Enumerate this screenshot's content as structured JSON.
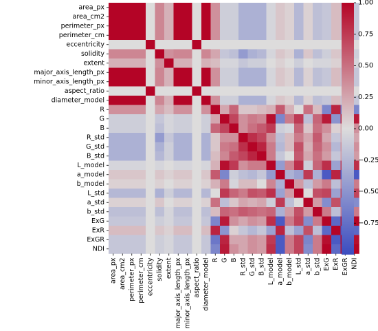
{
  "chart_data": {
    "type": "heatmap",
    "labels": [
      "area_px",
      "area_cm2",
      "perimeter_px",
      "perimeter_cm",
      "eccentricity",
      "solidity",
      "extent",
      "major_axis_length_px",
      "minor_axis_length_px",
      "aspect_ratio",
      "diameter_model",
      "R",
      "G",
      "B",
      "R_std",
      "G_std",
      "B_std",
      "L_model",
      "a_model",
      "b_model",
      "L_std",
      "a_std",
      "b_std",
      "ExG",
      "ExR",
      "ExGR",
      "NDI"
    ],
    "matrix": [
      [
        1,
        1,
        1,
        1,
        0,
        0.4,
        0.2,
        1,
        1,
        0,
        1,
        0.35,
        -0.1,
        -0.1,
        -0.3,
        -0.3,
        -0.3,
        -0.05,
        0.1,
        0.05,
        -0.25,
        0.05,
        -0.2,
        -0.15,
        0.15,
        -0.15,
        -0.15
      ],
      [
        1,
        1,
        1,
        1,
        0,
        0.4,
        0.2,
        1,
        1,
        0,
        1,
        0.35,
        -0.1,
        -0.1,
        -0.3,
        -0.3,
        -0.3,
        -0.05,
        0.1,
        0.05,
        -0.25,
        0.05,
        -0.2,
        -0.15,
        0.15,
        -0.15,
        -0.15
      ],
      [
        1,
        1,
        1,
        1,
        0,
        0.4,
        0.2,
        1,
        1,
        0,
        1,
        0.35,
        -0.1,
        -0.1,
        -0.3,
        -0.3,
        -0.3,
        -0.05,
        0.1,
        0.05,
        -0.25,
        0.05,
        -0.2,
        -0.15,
        0.15,
        -0.15,
        -0.15
      ],
      [
        1,
        1,
        1,
        1,
        0,
        0.4,
        0.2,
        1,
        1,
        0,
        1,
        0.35,
        -0.1,
        -0.1,
        -0.3,
        -0.3,
        -0.3,
        -0.05,
        0.1,
        0.05,
        -0.25,
        0.05,
        -0.2,
        -0.15,
        0.15,
        -0.15,
        -0.15
      ],
      [
        0,
        0,
        0,
        0,
        1,
        0,
        0,
        0,
        0,
        1,
        0,
        0,
        0,
        0,
        0,
        0,
        0,
        0,
        0,
        0,
        0,
        0,
        0,
        0,
        0,
        0,
        0
      ],
      [
        0.4,
        0.4,
        0.4,
        0.4,
        0,
        1,
        0.35,
        0.4,
        0.4,
        0,
        0.4,
        0.25,
        -0.15,
        -0.2,
        -0.45,
        -0.3,
        -0.25,
        -0.05,
        0.1,
        0.05,
        -0.3,
        0.1,
        -0.2,
        -0.1,
        0.1,
        -0.1,
        -0.1
      ],
      [
        0.2,
        0.2,
        0.2,
        0.2,
        0,
        0.35,
        1,
        0.2,
        0.2,
        0,
        0.2,
        0.15,
        -0.05,
        -0.05,
        -0.15,
        -0.1,
        -0.1,
        0,
        0.05,
        0,
        -0.1,
        0,
        -0.05,
        -0.05,
        0.05,
        -0.05,
        -0.05
      ],
      [
        1,
        1,
        1,
        1,
        0,
        0.4,
        0.2,
        1,
        1,
        0,
        1,
        0.35,
        -0.1,
        -0.1,
        -0.3,
        -0.3,
        -0.3,
        -0.05,
        0.1,
        0.05,
        -0.25,
        0.05,
        -0.2,
        -0.15,
        0.15,
        -0.15,
        -0.15
      ],
      [
        1,
        1,
        1,
        1,
        0,
        0.4,
        0.2,
        1,
        1,
        0,
        1,
        0.35,
        -0.1,
        -0.1,
        -0.3,
        -0.3,
        -0.3,
        -0.05,
        0.1,
        0.05,
        -0.25,
        0.05,
        -0.2,
        -0.15,
        0.15,
        -0.15,
        -0.15
      ],
      [
        0,
        0,
        0,
        0,
        1,
        0,
        0,
        0,
        0,
        1,
        0,
        0,
        0,
        0,
        0,
        0,
        0,
        0,
        0,
        0,
        0,
        0,
        0,
        0,
        0,
        0,
        0
      ],
      [
        1,
        1,
        1,
        1,
        0,
        0.4,
        0.2,
        1,
        1,
        0,
        1,
        0.35,
        -0.1,
        -0.1,
        -0.3,
        -0.3,
        -0.3,
        -0.05,
        0.1,
        0.05,
        -0.25,
        0.05,
        -0.2,
        -0.15,
        0.15,
        -0.15,
        -0.15
      ],
      [
        0.35,
        0.35,
        0.35,
        0.35,
        0,
        0.25,
        0.15,
        0.35,
        0.35,
        0,
        0.35,
        1,
        0.25,
        0.55,
        0.1,
        0.1,
        0.15,
        0.2,
        0.6,
        0.2,
        0,
        0.5,
        0.15,
        -0.6,
        0.85,
        -0.7,
        -0.6
      ],
      [
        -0.1,
        -0.1,
        -0.1,
        -0.1,
        0,
        -0.15,
        -0.05,
        -0.1,
        -0.1,
        0,
        -0.1,
        0.25,
        1,
        0.7,
        0.35,
        0.45,
        0.4,
        0.95,
        -0.6,
        0.45,
        0.75,
        -0.2,
        0.55,
        0.9,
        -0.5,
        0.85,
        0.9
      ],
      [
        -0.1,
        -0.1,
        -0.1,
        -0.1,
        0,
        -0.2,
        -0.05,
        -0.1,
        -0.1,
        0,
        -0.1,
        0.55,
        0.7,
        1,
        0.35,
        0.5,
        0.6,
        0.75,
        -0.1,
        -0.05,
        0.55,
        0.1,
        0.5,
        0.35,
        0.05,
        0.25,
        0.35
      ],
      [
        -0.3,
        -0.3,
        -0.3,
        -0.3,
        0,
        -0.45,
        -0.15,
        -0.3,
        -0.3,
        0,
        -0.3,
        0.1,
        0.35,
        0.35,
        1,
        0.8,
        0.7,
        0.35,
        -0.2,
        0.15,
        0.45,
        0.25,
        0.6,
        0.25,
        -0.15,
        0.25,
        0.25
      ],
      [
        -0.3,
        -0.3,
        -0.3,
        -0.3,
        0,
        -0.3,
        -0.1,
        -0.3,
        -0.3,
        0,
        -0.3,
        0.1,
        0.45,
        0.5,
        0.8,
        1,
        0.85,
        0.45,
        -0.25,
        0.15,
        0.65,
        0.2,
        0.55,
        0.35,
        -0.25,
        0.35,
        0.35
      ],
      [
        -0.3,
        -0.3,
        -0.3,
        -0.3,
        0,
        -0.25,
        -0.1,
        -0.3,
        -0.3,
        0,
        -0.3,
        0.15,
        0.4,
        0.6,
        0.7,
        0.85,
        1,
        0.45,
        -0.15,
        0,
        0.6,
        0.25,
        0.5,
        0.3,
        -0.15,
        0.3,
        0.3
      ],
      [
        -0.05,
        -0.05,
        -0.05,
        -0.05,
        0,
        -0.05,
        0,
        -0.05,
        -0.05,
        0,
        -0.05,
        0.2,
        0.95,
        0.75,
        0.35,
        0.45,
        0.45,
        1,
        -0.45,
        0.4,
        0.8,
        -0.1,
        0.55,
        0.8,
        -0.4,
        0.75,
        0.8
      ],
      [
        0.1,
        0.1,
        0.1,
        0.1,
        0,
        0.1,
        0.05,
        0.1,
        0.1,
        0,
        0.1,
        0.6,
        -0.6,
        -0.1,
        -0.2,
        -0.25,
        -0.15,
        -0.45,
        1,
        -0.3,
        -0.4,
        0.75,
        -0.3,
        -0.9,
        0.85,
        -0.9,
        -0.9
      ],
      [
        0.05,
        0.05,
        0.05,
        0.05,
        0,
        0.05,
        0,
        0.05,
        0.05,
        0,
        0.05,
        0.2,
        0.45,
        -0.05,
        0.15,
        0.15,
        0,
        0.4,
        -0.3,
        1,
        0.3,
        -0.2,
        0.3,
        0.45,
        -0.2,
        0.45,
        0.45
      ],
      [
        -0.25,
        -0.25,
        -0.25,
        -0.25,
        0,
        -0.3,
        -0.1,
        -0.25,
        -0.25,
        0,
        -0.25,
        0,
        0.75,
        0.55,
        0.45,
        0.65,
        0.6,
        0.8,
        -0.4,
        0.3,
        1,
        0,
        0.65,
        0.7,
        -0.4,
        0.7,
        0.7
      ],
      [
        0.05,
        0.05,
        0.05,
        0.05,
        0,
        0.1,
        0,
        0.05,
        0.05,
        0,
        0.05,
        0.5,
        -0.2,
        0.1,
        0.25,
        0.2,
        0.25,
        -0.1,
        0.75,
        -0.2,
        0,
        1,
        0.3,
        -0.55,
        0.65,
        -0.6,
        -0.55
      ],
      [
        -0.2,
        -0.2,
        -0.2,
        -0.2,
        0,
        -0.2,
        -0.05,
        -0.2,
        -0.2,
        0,
        -0.2,
        0.15,
        0.55,
        0.5,
        0.6,
        0.55,
        0.5,
        0.55,
        -0.3,
        0.3,
        0.65,
        0.3,
        1,
        0.45,
        -0.2,
        0.45,
        0.45
      ],
      [
        -0.15,
        -0.15,
        -0.15,
        -0.15,
        0,
        -0.1,
        -0.05,
        -0.15,
        -0.15,
        0,
        -0.15,
        -0.6,
        0.9,
        0.35,
        0.25,
        0.35,
        0.3,
        0.8,
        -0.9,
        0.45,
        0.7,
        -0.55,
        0.45,
        1,
        -0.8,
        0.95,
        1
      ],
      [
        0.15,
        0.15,
        0.15,
        0.15,
        0,
        0.1,
        0.05,
        0.15,
        0.15,
        0,
        0.15,
        0.85,
        -0.5,
        0.05,
        -0.15,
        -0.25,
        -0.15,
        -0.4,
        0.85,
        -0.2,
        -0.4,
        0.65,
        -0.2,
        -0.8,
        1,
        -0.9,
        -0.8
      ],
      [
        -0.15,
        -0.15,
        -0.15,
        -0.15,
        0,
        -0.1,
        -0.05,
        -0.15,
        -0.15,
        0,
        -0.15,
        -0.7,
        0.85,
        0.25,
        0.25,
        0.35,
        0.3,
        0.75,
        -0.9,
        0.45,
        0.7,
        -0.6,
        0.45,
        0.95,
        -0.9,
        1,
        0.95
      ],
      [
        -0.15,
        -0.15,
        -0.15,
        -0.15,
        0,
        -0.1,
        -0.05,
        -0.15,
        -0.15,
        0,
        -0.15,
        -0.6,
        0.9,
        0.35,
        0.25,
        0.35,
        0.3,
        0.8,
        -0.9,
        0.45,
        0.7,
        -0.55,
        0.45,
        1,
        -0.8,
        0.95,
        1
      ]
    ],
    "colorbar": {
      "vmin": -1,
      "vmax": 1,
      "ticks": [
        1.0,
        0.75,
        0.5,
        0.25,
        0.0,
        -0.25,
        -0.5,
        -0.75
      ],
      "tick_labels": [
        "1.00",
        "0.75",
        "0.50",
        "0.25",
        "0.00",
        "−0.25",
        "−0.50",
        "−0.75"
      ],
      "colormap": "coolwarm",
      "colors": [
        "#3b4cc0",
        "#dddcdc",
        "#b40426"
      ]
    },
    "title": "",
    "xlabel": "",
    "ylabel": "",
    "grid": false,
    "legend": "colorbar-right"
  }
}
